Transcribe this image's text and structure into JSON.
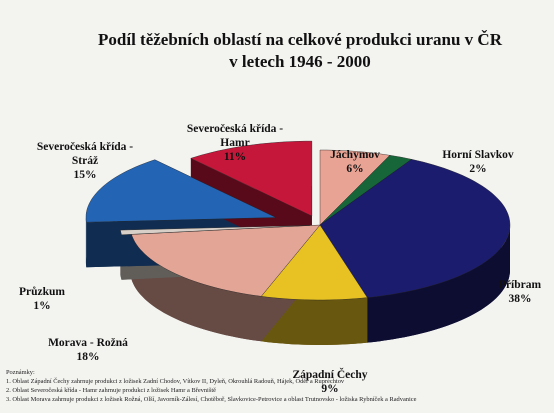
{
  "chart_data": {
    "type": "pie3d",
    "title": "Podíl těžebních oblastí na celkové produkci uranu v ČR",
    "subtitle": "v letech 1946 - 2000",
    "categories": [
      "Jáchymov",
      "Horní Slavkov",
      "Příbram",
      "Západní Čechy",
      "Morava - Rožná",
      "Průzkum",
      "Severočeská křída - Stráž",
      "Severočeská křída - Hamr"
    ],
    "values": [
      6,
      2,
      38,
      9,
      18,
      1,
      15,
      11
    ],
    "value_labels": [
      "6%",
      "2%",
      "38%",
      "9%",
      "18%",
      "1%",
      "15%",
      "11%"
    ],
    "colors": [
      "#e8a394",
      "#17663a",
      "#1c1c6e",
      "#e8c222",
      "#e3a596",
      "#d8d0c8",
      "#2364b4",
      "#c4173a"
    ]
  },
  "notes": {
    "heading": "Poznámky:",
    "lines": [
      "1. Oblast Západní Čechy zahrnuje produkci z ložisek Zadní Chodov, Vítkov II, Dyleň, Okrouhlá Radouň, Hájek, Oděř a Rupréchtov",
      "2. Oblast Severočeská křída - Hamr zahrnuje produkci z ložisek Hamr a Břevniště",
      "3. Oblast Morava zahrnuje produkci z ložisek Rožná, Olší, Javorník-Zálesí, Chotěboř, Slavkovice-Petrovice a oblast Trutnovsko - ložiska Rybníček a Radvanice"
    ]
  }
}
